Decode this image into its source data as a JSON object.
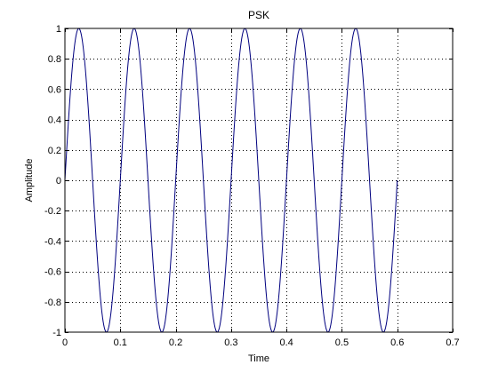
{
  "chart_data": {
    "type": "line",
    "title": "PSK",
    "xlabel": "Time",
    "ylabel": "Amplitude",
    "xlim": [
      0,
      0.7
    ],
    "ylim": [
      -1,
      1
    ],
    "grid": true,
    "grid_style": "dotted",
    "x_ticks": [
      "0",
      "0.1",
      "0.2",
      "0.3",
      "0.4",
      "0.5",
      "0.6",
      "0.7"
    ],
    "y_ticks": [
      "1",
      "0.8",
      "0.6",
      "0.4",
      "0.2",
      "0",
      "-0.2",
      "-0.4",
      "-0.6",
      "-0.8",
      "-1"
    ],
    "line_color": "#00007f",
    "series": [
      {
        "function": "sin(2*pi*10*t)",
        "t_start": 0,
        "t_end": 0.6,
        "frequency_hz": 10,
        "amplitude": 1
      }
    ]
  }
}
